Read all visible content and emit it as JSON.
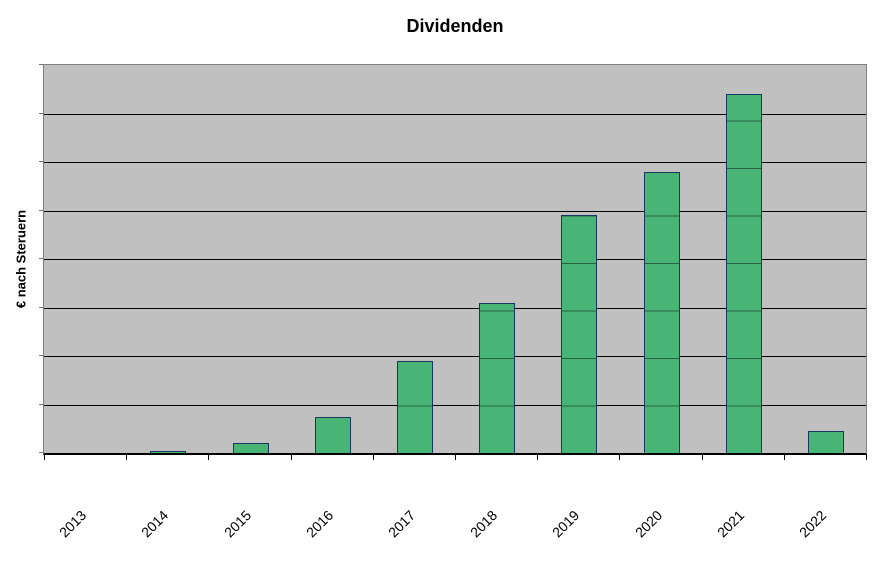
{
  "window": {
    "background": "#FFFFFF"
  },
  "chart_data": {
    "type": "bar",
    "title": "Dividenden",
    "ylabel": "€ nach Steruern",
    "xlabel": "",
    "categories": [
      "2013",
      "2014",
      "2015",
      "2016",
      "2017",
      "2018",
      "2019",
      "2020",
      "2021",
      "2022"
    ],
    "values": [
      0,
      0.03,
      0.19,
      0.72,
      1.88,
      3.07,
      4.89,
      5.77,
      7.38,
      0.43
    ],
    "value_scale_note": "y-axis shows no numeric tick labels; values estimated in gridline units (8 equal divisions of plot height)",
    "ylim": [
      0,
      8
    ],
    "grid_divisions": 8,
    "grid": "horizontal",
    "legend": "none",
    "x_tick_count": 11,
    "colors": {
      "bar_fill": "#48B476",
      "bar_border": "#17375E",
      "bar_gridline_overlay": "rgba(0,0,0,0.45)",
      "plot_background": "#C0C0C0",
      "gridline": "#000000",
      "axis": "#000000",
      "plot_border": "#808080",
      "text": "#000000"
    }
  }
}
